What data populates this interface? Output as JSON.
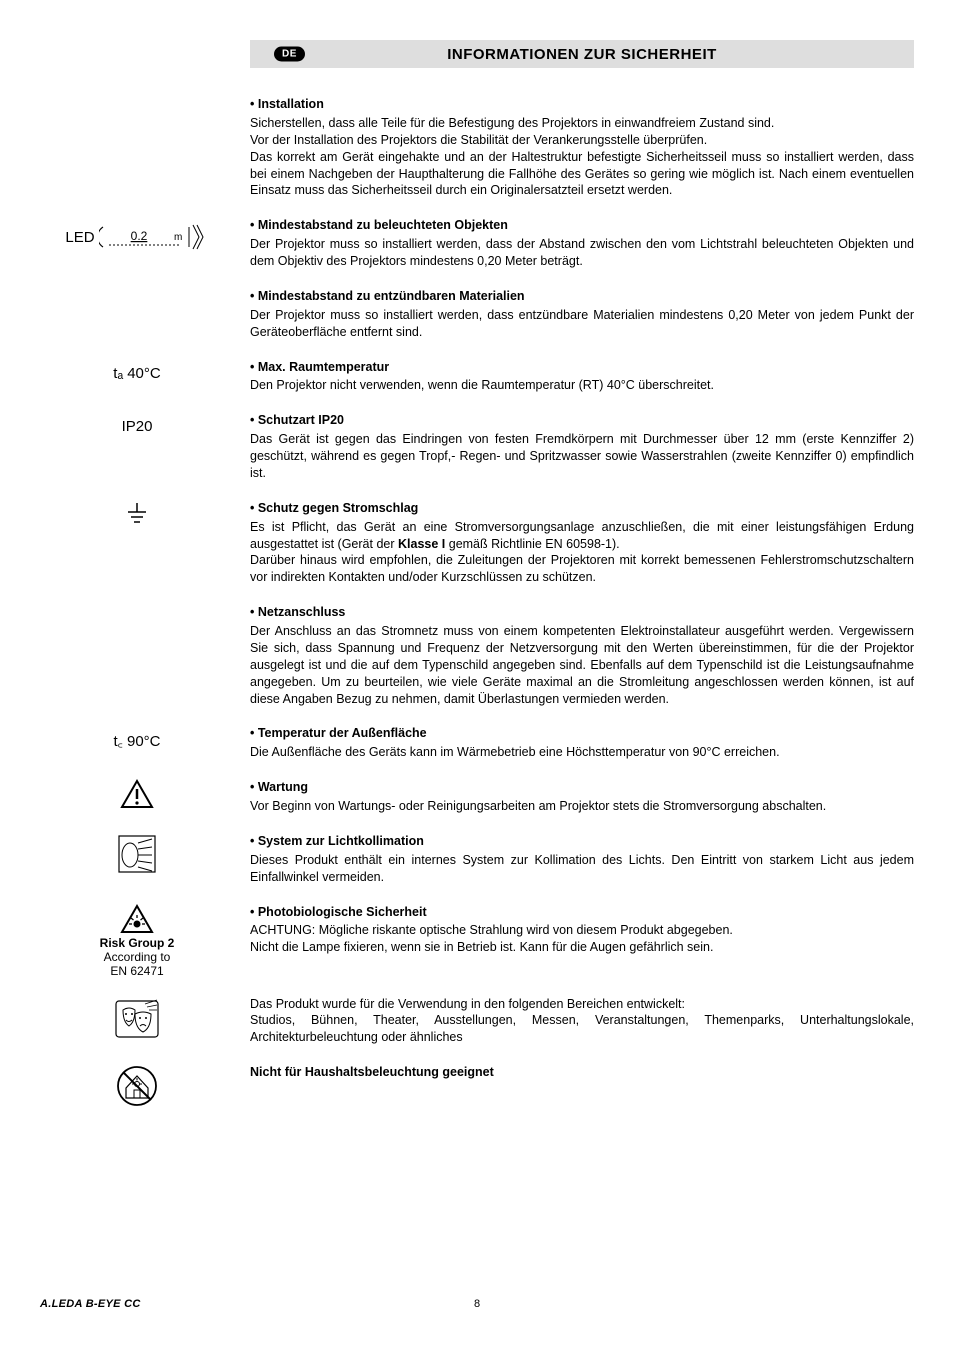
{
  "header": {
    "badge": "DE",
    "title": "INFORMATIONEN ZUR SICHERHEIT"
  },
  "sections": [
    {
      "left": {
        "type": "none"
      },
      "title": "• Installation",
      "body": "Sicherstellen, dass alle Teile für die Befestigung des Projektors in einwandfreiem Zustand sind.\nVor der Installation des Projektors die Stabilität der Verankerungsstelle überprüfen.\nDas korrekt am Gerät eingehakte und an der Haltestruktur befestigte Sicherheitsseil muss so installiert werden, dass bei einem Nachgeben der Haupthalterung die Fallhöhe des Gerätes so gering wie möglich ist. Nach einem eventuellen Einsatz muss das Sicherheitsseil durch ein Originalersatzteil ersetzt werden."
    },
    {
      "left": {
        "type": "led",
        "text": "LED",
        "distance": "0.2"
      },
      "title": "• Mindestabstand zu beleuchteten Objekten",
      "body": "Der Projektor muss so installiert werden, dass der Abstand zwischen den vom Lichtstrahl beleuchteten Objekten und dem Objektiv des Projektors mindestens 0,20 Meter beträgt."
    },
    {
      "left": {
        "type": "none"
      },
      "title": "• Mindestabstand zu entzündbaren Materialien",
      "body": "Der Projektor muss so installiert werden, dass entzündbare Materialien mindestens 0,20 Meter von jedem Punkt der Geräteoberfläche entfernt sind."
    },
    {
      "left": {
        "type": "text",
        "text": "tₐ 40°C"
      },
      "title": "• Max. Raumtemperatur",
      "body": "Den Projektor nicht verwenden, wenn die Raumtemperatur (RT) 40°C überschreitet."
    },
    {
      "left": {
        "type": "text",
        "text": "IP20"
      },
      "title": "• Schutzart IP20",
      "body": "Das Gerät ist gegen das Eindringen von festen Fremdkörpern mit Durchmesser über 12 mm (erste Kennziffer 2) geschützt, während es gegen Tropf,- Regen- und Spritzwasser sowie Wasserstrahlen (zweite Kennziffer 0) empfindlich ist."
    },
    {
      "left": {
        "type": "ground"
      },
      "title": "• Schutz gegen Stromschlag",
      "body_html": "Es ist Pflicht, das Gerät an eine Stromversorgungsanlage anzuschließen, die mit einer leistungsfähigen Erdung ausgestattet ist (Gerät der <b>Klasse I</b> gemäß Richtlinie EN 60598-1).\nDarüber hinaus wird empfohlen, die Zuleitungen der Projektoren mit korrekt bemessenen Fehlerstromschutzschaltern vor indirekten Kontakten und/oder Kurzschlüssen zu schützen."
    },
    {
      "left": {
        "type": "none"
      },
      "title": "• Netzanschluss",
      "body": "Der Anschluss an das Stromnetz muss von einem kompetenten Elektroinstallateur ausgeführt werden. Vergewissern Sie sich, dass Spannung und Frequenz der Netzversorgung mit den Werten übereinstimmen, für die der Projektor ausgelegt ist und die auf dem Typenschild angegeben sind. Ebenfalls auf dem Typenschild ist die Leistungsaufnahme angegeben. Um zu beurteilen, wie viele Geräte maximal an die Stromleitung angeschlossen werden können, ist auf diese Angaben Bezug zu nehmen, damit Überlastungen vermieden werden."
    },
    {
      "left": {
        "type": "text",
        "text": "t꜀ 90°C"
      },
      "title": "• Temperatur der Außenfläche",
      "body": "Die Außenfläche des Geräts kann im Wärmebetrieb eine Höchsttemperatur von 90°C erreichen."
    },
    {
      "left": {
        "type": "warning"
      },
      "title": "• Wartung",
      "body": "Vor Beginn von Wartungs- oder Reinigungsarbeiten am Projektor stets die Stromversorgung abschalten."
    },
    {
      "left": {
        "type": "optics"
      },
      "title": "• System zur Lichtkollimation",
      "body": "Dieses Produkt enthält ein internes System zur Kollimation des Lichts. Den Eintritt von starkem Licht aus jedem Einfallwinkel vermeiden."
    },
    {
      "left": {
        "type": "risk",
        "line1": "Risk Group 2",
        "line2": "According to",
        "line3": "EN 62471"
      },
      "title": " • Photobiologische Sicherheit",
      "body": "ACHTUNG: Mögliche riskante optische Strahlung wird von diesem Produkt abgegeben.\nNicht die Lampe fixieren, wenn sie in Betrieb ist. Kann für die Augen gefährlich sein."
    },
    {
      "left": {
        "type": "masks"
      },
      "title": "",
      "body": "Das Produkt wurde für die Verwendung in den folgenden Bereichen entwickelt:\nStudios, Bühnen, Theater, Ausstellungen, Messen, Veranstaltungen, Themenparks, Unterhaltungslokale, Architekturbeleuchtung oder ähnliches"
    },
    {
      "left": {
        "type": "house"
      },
      "title": "",
      "body_html": "<b>Nicht für Haushaltsbeleuchtung geeignet</b>"
    }
  ],
  "footer": {
    "left": "A.LEDA B-EYE CC",
    "page": "8"
  },
  "colors": {
    "header_bg": "#dedede",
    "text": "#000000",
    "background": "#ffffff"
  }
}
